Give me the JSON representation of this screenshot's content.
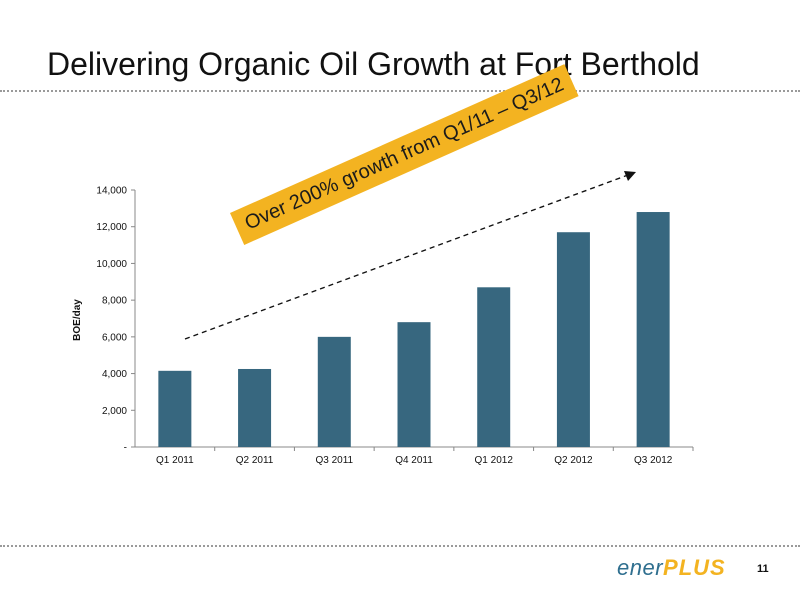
{
  "slide": {
    "title": "Delivering Organic Oil Growth at Fort Berthold",
    "page_number": "11"
  },
  "logo": {
    "ener": "ener",
    "plus": "PLUS"
  },
  "callout": {
    "text": "Over 200% growth from Q1/11 – Q3/12"
  },
  "colors": {
    "bar": "#37677f",
    "callout": "#f3b321",
    "divider": "#9a9a9a"
  },
  "chart_data": {
    "type": "bar",
    "categories": [
      "Q1 2011",
      "Q2 2011",
      "Q3 2011",
      "Q4 2011",
      "Q1 2012",
      "Q2 2012",
      "Q3 2012"
    ],
    "values": [
      4150,
      4250,
      6000,
      6800,
      8700,
      11700,
      12800
    ],
    "ylabel": "BOE/day",
    "ylim": [
      0,
      14000
    ],
    "yticks": [
      0,
      2000,
      4000,
      6000,
      8000,
      10000,
      12000,
      14000
    ],
    "ytick_labels": [
      "-",
      "2,000",
      "4,000",
      "6,000",
      "8,000",
      "10,000",
      "12,000",
      "14,000"
    ],
    "grid": false,
    "legend": "none"
  }
}
